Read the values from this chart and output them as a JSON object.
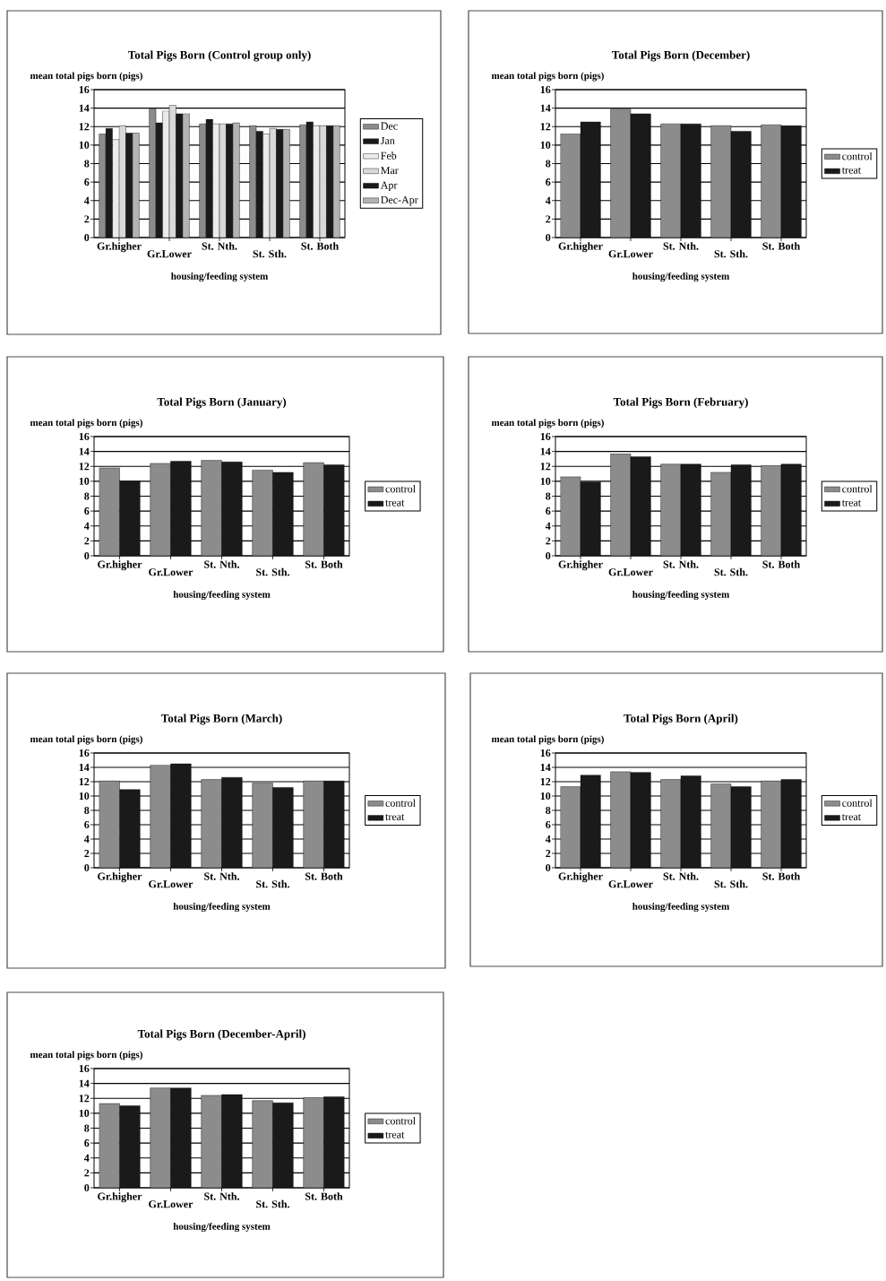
{
  "chart_data": [
    {
      "type": "bar",
      "title": "Total Pigs Born (Control group only)",
      "ylabel": "mean total pigs born (pigs)",
      "xlabel": "housing/feeding system",
      "categories": [
        "Gr.higher",
        "Gr.Lower",
        "St. Nth.",
        "St. Sth.",
        "St. Both"
      ],
      "ylim": [
        0,
        16
      ],
      "yticks": [
        0,
        2,
        4,
        6,
        8,
        10,
        12,
        14,
        16
      ],
      "grid": "y",
      "legend": "right",
      "series": [
        {
          "name": "Dec",
          "color": "#8c8c8c",
          "values": [
            11.2,
            13.9,
            12.3,
            12.1,
            12.2
          ]
        },
        {
          "name": "Jan",
          "color": "#1a1a1a",
          "values": [
            11.8,
            12.4,
            12.8,
            11.5,
            12.5
          ]
        },
        {
          "name": "Feb",
          "color": "#ebebeb",
          "values": [
            10.6,
            13.7,
            12.3,
            11.2,
            12.1
          ]
        },
        {
          "name": "Mar",
          "color": "#d9d9d9",
          "values": [
            12.1,
            14.3,
            12.3,
            11.8,
            12.1
          ]
        },
        {
          "name": "Apr",
          "color": "#1a1a1a",
          "values": [
            11.3,
            13.4,
            12.3,
            11.7,
            12.1
          ]
        },
        {
          "name": "Dec-Apr",
          "color": "#b3b3b3",
          "values": [
            11.3,
            13.4,
            12.4,
            11.7,
            12.1
          ]
        }
      ]
    },
    {
      "type": "bar",
      "title": "Total Pigs Born (December)",
      "ylabel": "mean total pigs born (pigs)",
      "xlabel": "housing/feeding system",
      "categories": [
        "Gr.higher",
        "Gr.Lower",
        "St. Nth.",
        "St. Sth.",
        "St. Both"
      ],
      "ylim": [
        0,
        16
      ],
      "yticks": [
        0,
        2,
        4,
        6,
        8,
        10,
        12,
        14,
        16
      ],
      "grid": "y",
      "legend": "right",
      "series": [
        {
          "name": "control",
          "color": "#8c8c8c",
          "values": [
            11.2,
            13.9,
            12.3,
            12.1,
            12.2
          ]
        },
        {
          "name": "treat",
          "color": "#1a1a1a",
          "values": [
            12.5,
            13.4,
            12.3,
            11.5,
            12.1
          ]
        }
      ]
    },
    {
      "type": "bar",
      "title": "Total Pigs Born (January)",
      "ylabel": "mean total pigs born (pigs)",
      "xlabel": "housing/feeding system",
      "categories": [
        "Gr.higher",
        "Gr.Lower",
        "St. Nth.",
        "St. Sth.",
        "St. Both"
      ],
      "ylim": [
        0,
        16
      ],
      "yticks": [
        0,
        2,
        4,
        6,
        8,
        10,
        12,
        14,
        16
      ],
      "grid": "y",
      "legend": "right",
      "series": [
        {
          "name": "control",
          "color": "#8c8c8c",
          "values": [
            11.8,
            12.4,
            12.8,
            11.5,
            12.5
          ]
        },
        {
          "name": "treat",
          "color": "#1a1a1a",
          "values": [
            10.0,
            12.7,
            12.6,
            11.2,
            12.2
          ]
        }
      ]
    },
    {
      "type": "bar",
      "title": "Total Pigs Born (February)",
      "ylabel": "mean total pigs born (pigs)",
      "xlabel": "housing/feeding system",
      "categories": [
        "Gr.higher",
        "Gr.Lower",
        "St. Nth.",
        "St. Sth.",
        "St. Both"
      ],
      "ylim": [
        0,
        16
      ],
      "yticks": [
        0,
        2,
        4,
        6,
        8,
        10,
        12,
        14,
        16
      ],
      "grid": "y",
      "legend": "right",
      "series": [
        {
          "name": "control",
          "color": "#8c8c8c",
          "values": [
            10.6,
            13.7,
            12.3,
            11.2,
            12.1
          ]
        },
        {
          "name": "treat",
          "color": "#1a1a1a",
          "values": [
            9.9,
            13.3,
            12.3,
            12.2,
            12.3
          ]
        }
      ]
    },
    {
      "type": "bar",
      "title": "Total Pigs Born (March)",
      "ylabel": "mean total pigs born (pigs)",
      "xlabel": "housing/feeding system",
      "categories": [
        "Gr.higher",
        "Gr.Lower",
        "St. Nth.",
        "St. Sth.",
        "St. Both"
      ],
      "ylim": [
        0,
        16
      ],
      "yticks": [
        0,
        2,
        4,
        6,
        8,
        10,
        12,
        14,
        16
      ],
      "grid": "y",
      "legend": "right",
      "series": [
        {
          "name": "control",
          "color": "#8c8c8c",
          "values": [
            12.1,
            14.3,
            12.3,
            11.8,
            12.1
          ]
        },
        {
          "name": "treat",
          "color": "#1a1a1a",
          "values": [
            10.9,
            14.5,
            12.6,
            11.2,
            12.1
          ]
        }
      ]
    },
    {
      "type": "bar",
      "title": "Total Pigs Born (April)",
      "ylabel": "mean total pigs born (pigs)",
      "xlabel": "housing/feeding system",
      "categories": [
        "Gr.higher",
        "Gr.Lower",
        "St. Nth.",
        "St. Sth.",
        "St. Both"
      ],
      "ylim": [
        0,
        16
      ],
      "yticks": [
        0,
        2,
        4,
        6,
        8,
        10,
        12,
        14,
        16
      ],
      "grid": "y",
      "legend": "right",
      "series": [
        {
          "name": "control",
          "color": "#8c8c8c",
          "values": [
            11.3,
            13.4,
            12.3,
            11.7,
            12.1
          ]
        },
        {
          "name": "treat",
          "color": "#1a1a1a",
          "values": [
            12.9,
            13.3,
            12.8,
            11.3,
            12.3
          ]
        }
      ]
    },
    {
      "type": "bar",
      "title": "Total Pigs Born (December-April)",
      "ylabel": "mean total pigs born (pigs)",
      "xlabel": "housing/feeding system",
      "categories": [
        "Gr.higher",
        "Gr.Lower",
        "St. Nth.",
        "St. Sth.",
        "St. Both"
      ],
      "ylim": [
        0,
        16
      ],
      "yticks": [
        0,
        2,
        4,
        6,
        8,
        10,
        12,
        14,
        16
      ],
      "grid": "y",
      "legend": "right",
      "series": [
        {
          "name": "control",
          "color": "#8c8c8c",
          "values": [
            11.3,
            13.4,
            12.4,
            11.7,
            12.1
          ]
        },
        {
          "name": "treat",
          "color": "#1a1a1a",
          "values": [
            11.0,
            13.4,
            12.5,
            11.4,
            12.2
          ]
        }
      ]
    }
  ]
}
